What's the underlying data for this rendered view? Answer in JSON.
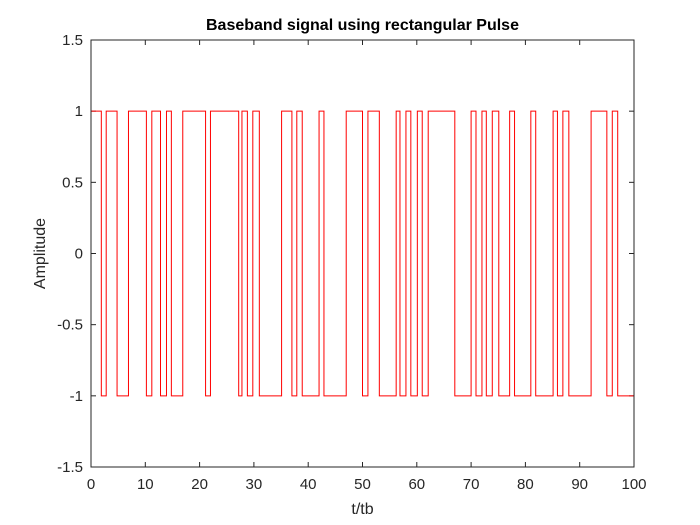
{
  "chart_data": {
    "type": "line",
    "title": "Baseband signal using rectangular Pulse",
    "xlabel": "t/tb",
    "ylabel": "Amplitude",
    "xlim": [
      0,
      100
    ],
    "ylim": [
      -1.5,
      1.5
    ],
    "xticks": [
      "0",
      "10",
      "20",
      "30",
      "40",
      "50",
      "60",
      "70",
      "80",
      "90",
      "100"
    ],
    "yticks": [
      "-1.5",
      "-1",
      "-0.5",
      "0",
      "0.5",
      "1",
      "1.5"
    ],
    "grid": false,
    "series": [
      {
        "color": "#ff0000",
        "x": [
          0,
          0.0,
          1.9,
          1.9,
          2.8,
          2.8,
          4.8,
          4.8,
          6.9,
          6.9,
          10.2,
          10.2,
          11.2,
          11.2,
          12.8,
          12.8,
          13.9,
          13.9,
          14.8,
          14.8,
          16.9,
          16.9,
          21.1,
          21.1,
          22.0,
          22.0,
          27.2,
          27.2,
          27.8,
          27.8,
          28.8,
          28.8,
          29.8,
          29.8,
          31.0,
          31.0,
          35.1,
          35.1,
          37.0,
          37.0,
          37.9,
          37.9,
          38.9,
          38.9,
          42.0,
          42.0,
          42.9,
          42.9,
          47.0,
          47.0,
          50.0,
          50.0,
          51.0,
          51.0,
          53.1,
          53.1,
          56.2,
          56.2,
          56.9,
          56.9,
          58.0,
          58.0,
          58.9,
          58.9,
          60.1,
          60.1,
          61.0,
          61.0,
          62.1,
          62.1,
          67.0,
          67.0,
          70.0,
          70.0,
          70.9,
          70.9,
          72.0,
          72.0,
          72.8,
          72.8,
          73.9,
          73.9,
          75.1,
          75.1,
          77.1,
          77.1,
          78.0,
          78.0,
          81.0,
          81.0,
          81.9,
          81.9,
          85.1,
          85.1,
          85.9,
          85.9,
          86.9,
          86.9,
          88.0,
          88.0,
          92.1,
          92.1,
          95.0,
          95.0,
          96.0,
          96.0,
          97.0,
          97.0,
          100,
          100
        ],
        "y": [
          0,
          1,
          1,
          -1,
          -1,
          1,
          1,
          -1,
          -1,
          1,
          1,
          -1,
          -1,
          1,
          1,
          -1,
          -1,
          1,
          1,
          -1,
          -1,
          1,
          1,
          -1,
          -1,
          1,
          1,
          -1,
          -1,
          1,
          1,
          -1,
          -1,
          1,
          1,
          -1,
          -1,
          1,
          1,
          -1,
          -1,
          1,
          1,
          -1,
          -1,
          1,
          1,
          -1,
          -1,
          1,
          1,
          -1,
          -1,
          1,
          1,
          -1,
          -1,
          1,
          1,
          -1,
          -1,
          1,
          1,
          -1,
          -1,
          1,
          1,
          -1,
          -1,
          1,
          1,
          -1,
          -1,
          1,
          1,
          -1,
          -1,
          1,
          1,
          -1,
          -1,
          1,
          1,
          -1,
          -1,
          1,
          1,
          -1,
          -1,
          1,
          1,
          -1,
          -1,
          1,
          1,
          -1,
          -1,
          1,
          1,
          -1,
          -1,
          1,
          1,
          -1,
          -1,
          1,
          1,
          -1,
          -1,
          0
        ]
      }
    ]
  }
}
